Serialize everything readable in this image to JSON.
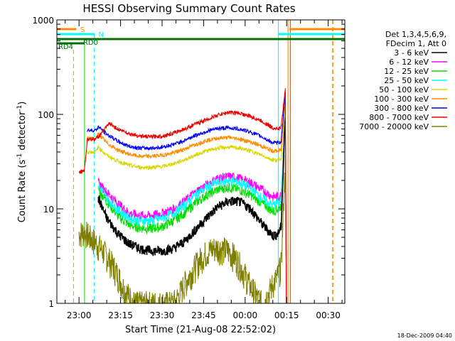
{
  "chart_data": {
    "type": "line",
    "title": "HESSI Observing Summary Count Rates",
    "xlabel": "Start Time (21-Aug-08 22:52:02)",
    "ylabel_main": "Count Rate (s",
    "ylabel_sup1": "-1",
    "ylabel_mid": " detector",
    "ylabel_sup2": "-1",
    "ylabel_end": ")",
    "yscale": "log",
    "ylim": [
      1,
      1000
    ],
    "xlim_minutes": [
      -8,
      96
    ],
    "x_ticks": [
      {
        "label": "23:00",
        "min": 0
      },
      {
        "label": "23:15",
        "min": 15
      },
      {
        "label": "23:30",
        "min": 30
      },
      {
        "label": "23:45",
        "min": 45
      },
      {
        "label": "00:00",
        "min": 60
      },
      {
        "label": "00:15",
        "min": 75
      },
      {
        "label": "00:30",
        "min": 90
      }
    ],
    "y_ticks": [
      {
        "label": "1",
        "value": 1
      },
      {
        "label": "10",
        "value": 10
      },
      {
        "label": "100",
        "value": 100
      },
      {
        "label": "1000",
        "value": 1000
      }
    ],
    "legend_header": [
      "Det 1,3,4,5,6,9,",
      "FDecim 1, Att 0"
    ],
    "legend_placement": "right",
    "series": [
      {
        "name": "3 - 6 keV",
        "color": "#000000",
        "x": [
          7,
          10,
          14,
          18,
          22,
          26,
          30,
          34,
          38,
          42,
          46,
          50,
          54,
          58,
          62,
          66,
          70,
          72,
          73,
          74.5
        ],
        "y": [
          13,
          8,
          5.5,
          4.3,
          3.8,
          3.6,
          3.6,
          3.8,
          4.5,
          6,
          8,
          10.5,
          12,
          12,
          10,
          7,
          5.2,
          5.5,
          6.5,
          100
        ]
      },
      {
        "name": "6 - 12 keV",
        "color": "#ff00ff",
        "x": [
          7,
          10,
          14,
          18,
          22,
          26,
          30,
          34,
          38,
          42,
          46,
          50,
          54,
          58,
          62,
          66,
          70,
          72,
          73,
          74.5
        ],
        "y": [
          19,
          15,
          11.5,
          9,
          8.5,
          8.5,
          9,
          10,
          12,
          15,
          18,
          21,
          22,
          21,
          19,
          16,
          13.5,
          13.5,
          14,
          120
        ]
      },
      {
        "name": "12 - 25 keV",
        "color": "#00e000",
        "x": [
          7,
          10,
          14,
          18,
          22,
          26,
          30,
          34,
          38,
          42,
          46,
          50,
          54,
          58,
          62,
          66,
          70,
          72,
          73,
          74.5
        ],
        "y": [
          16,
          12,
          8.5,
          6.8,
          6.3,
          6.2,
          6.5,
          7.5,
          9,
          11.5,
          14,
          16,
          17,
          16,
          14,
          11.5,
          9.5,
          10,
          11,
          110
        ]
      },
      {
        "name": "25 - 50 keV",
        "color": "#00ffff",
        "x": [
          7,
          10,
          14,
          18,
          22,
          26,
          30,
          34,
          38,
          42,
          46,
          50,
          54,
          58,
          62,
          66,
          70,
          72,
          73,
          74.5
        ],
        "y": [
          18,
          13,
          10,
          8,
          7.5,
          7.5,
          8,
          9,
          11,
          14,
          17,
          19,
          20,
          19,
          16.5,
          13,
          11,
          11.5,
          12.5,
          110
        ]
      },
      {
        "name": "50 - 100 keV",
        "color": "#d8d800",
        "x": [
          3,
          6,
          7,
          10,
          14,
          18,
          22,
          26,
          30,
          34,
          38,
          42,
          46,
          50,
          54,
          58,
          62,
          66,
          70,
          72,
          73,
          74.5
        ],
        "y": [
          40,
          40,
          45,
          37,
          32,
          29,
          27.5,
          27.5,
          28,
          30,
          33,
          37,
          41,
          44,
          45,
          44,
          41,
          37,
          33,
          33,
          34,
          120
        ]
      },
      {
        "name": "100 - 300 keV",
        "color": "#ff8c00",
        "x": [
          3,
          6,
          7,
          10,
          14,
          18,
          22,
          26,
          30,
          34,
          38,
          42,
          46,
          50,
          54,
          58,
          62,
          66,
          70,
          72,
          73,
          74.5
        ],
        "y": [
          55,
          55,
          62,
          50,
          42,
          38,
          36,
          36,
          37,
          39,
          43,
          48,
          53,
          56,
          57,
          55,
          51,
          46,
          41,
          41,
          42,
          150
        ]
      },
      {
        "name": "300 - 800 keV",
        "color": "#0000ff",
        "x": [
          3,
          6,
          7,
          10,
          14,
          18,
          22,
          26,
          30,
          34,
          38,
          42,
          46,
          50,
          54,
          58,
          62,
          66,
          70,
          72,
          73,
          74.5
        ],
        "y": [
          68,
          68,
          74,
          62,
          52,
          46,
          44,
          44,
          45,
          48,
          53,
          60,
          66,
          71,
          72,
          70,
          65,
          58,
          50,
          50,
          52,
          170
        ]
      },
      {
        "name": "800 - 7000 keV",
        "color": "#ee0000",
        "x": [
          0,
          2,
          3,
          6,
          7,
          11,
          14,
          18,
          22,
          26,
          30,
          34,
          38,
          42,
          46,
          50,
          54,
          58,
          62,
          66,
          70,
          72,
          73,
          74.5
        ],
        "y": [
          24,
          26,
          55,
          55,
          58,
          80,
          70,
          63,
          59,
          58,
          59,
          63,
          70,
          79,
          88,
          98,
          105,
          103,
          95,
          85,
          72,
          70,
          73,
          190
        ]
      },
      {
        "name": "7000 - 20000 keV",
        "color": "#808000",
        "x": [
          0,
          2,
          4,
          6,
          8,
          10,
          12,
          14,
          16,
          18,
          20,
          22,
          26,
          30,
          34,
          36,
          38,
          40,
          42,
          44,
          46,
          48,
          50,
          52,
          54,
          56,
          58,
          60,
          62,
          64,
          66,
          68,
          70,
          72,
          73,
          74.5
        ],
        "y": [
          5.5,
          5.8,
          5,
          4.5,
          3.8,
          3.2,
          2.6,
          2,
          1.5,
          1.2,
          1,
          1,
          1,
          1,
          1,
          1.2,
          1.6,
          2,
          2.5,
          3,
          3.5,
          3.8,
          3.9,
          3.8,
          3.6,
          3.2,
          2.6,
          2,
          1.5,
          1.2,
          1,
          1.2,
          1.6,
          2,
          2.6,
          30
        ]
      }
    ],
    "annotations": {
      "flags": [
        {
          "label": "S",
          "color": "#ff8c00"
        },
        {
          "label": "N",
          "color": "#00ffff"
        },
        {
          "label": "RD0",
          "color": "#007000"
        },
        {
          "label": "RD4",
          "color": "#007000"
        }
      ]
    }
  },
  "colors": {
    "saa": "#ff8c00",
    "night": "#00ffff",
    "decim": "#007000",
    "axis": "#000000"
  },
  "footer": {
    "timestamp": "18-Dec-2009 04:40"
  }
}
